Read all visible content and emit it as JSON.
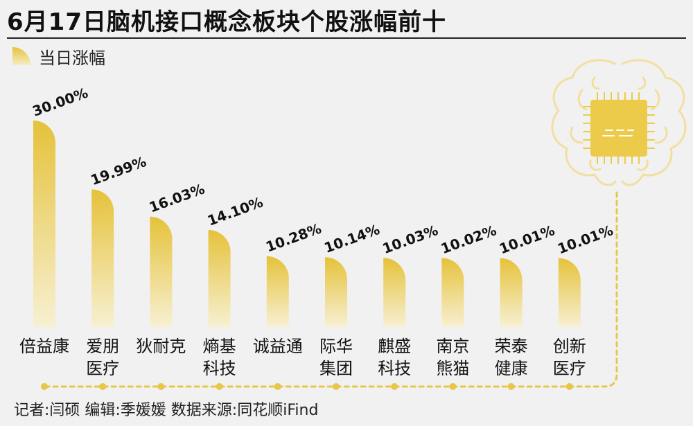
{
  "title": "6月17日脑机接口概念板块个股涨幅前十",
  "legend_label": "当日涨幅",
  "footer": "记者:闫硕  编辑:季媛媛  数据来源:同花顺iFind",
  "colors": {
    "bar_top": "#e5c23a",
    "bar_bottom": "#f7f0d2",
    "dots": "#e8c64a",
    "brain_outline": "#f2dfa0",
    "chip": "#eccb4a",
    "background": "#f1f1f1"
  },
  "icons": [
    "brain-chip-icon"
  ],
  "chart_data": {
    "type": "bar",
    "categories": [
      [
        "倍益康"
      ],
      [
        "爱朋",
        "医疗"
      ],
      [
        "狄耐克"
      ],
      [
        "熵基",
        "科技"
      ],
      [
        "诚益通"
      ],
      [
        "际华",
        "集团"
      ],
      [
        "麒盛",
        "科技"
      ],
      [
        "南京",
        "熊猫"
      ],
      [
        "荣泰",
        "健康"
      ],
      [
        "创新",
        "医疗"
      ]
    ],
    "values": [
      30.0,
      19.99,
      16.03,
      14.1,
      10.28,
      10.14,
      10.03,
      10.02,
      10.01,
      10.01
    ],
    "data_labels": [
      "30.00%",
      "19.99%",
      "16.03%",
      "14.10%",
      "10.28%",
      "10.14%",
      "10.03%",
      "10.02%",
      "10.01%",
      "10.01%"
    ],
    "ylim": [
      0,
      30
    ],
    "grid": false,
    "legend_position": "top-left"
  }
}
